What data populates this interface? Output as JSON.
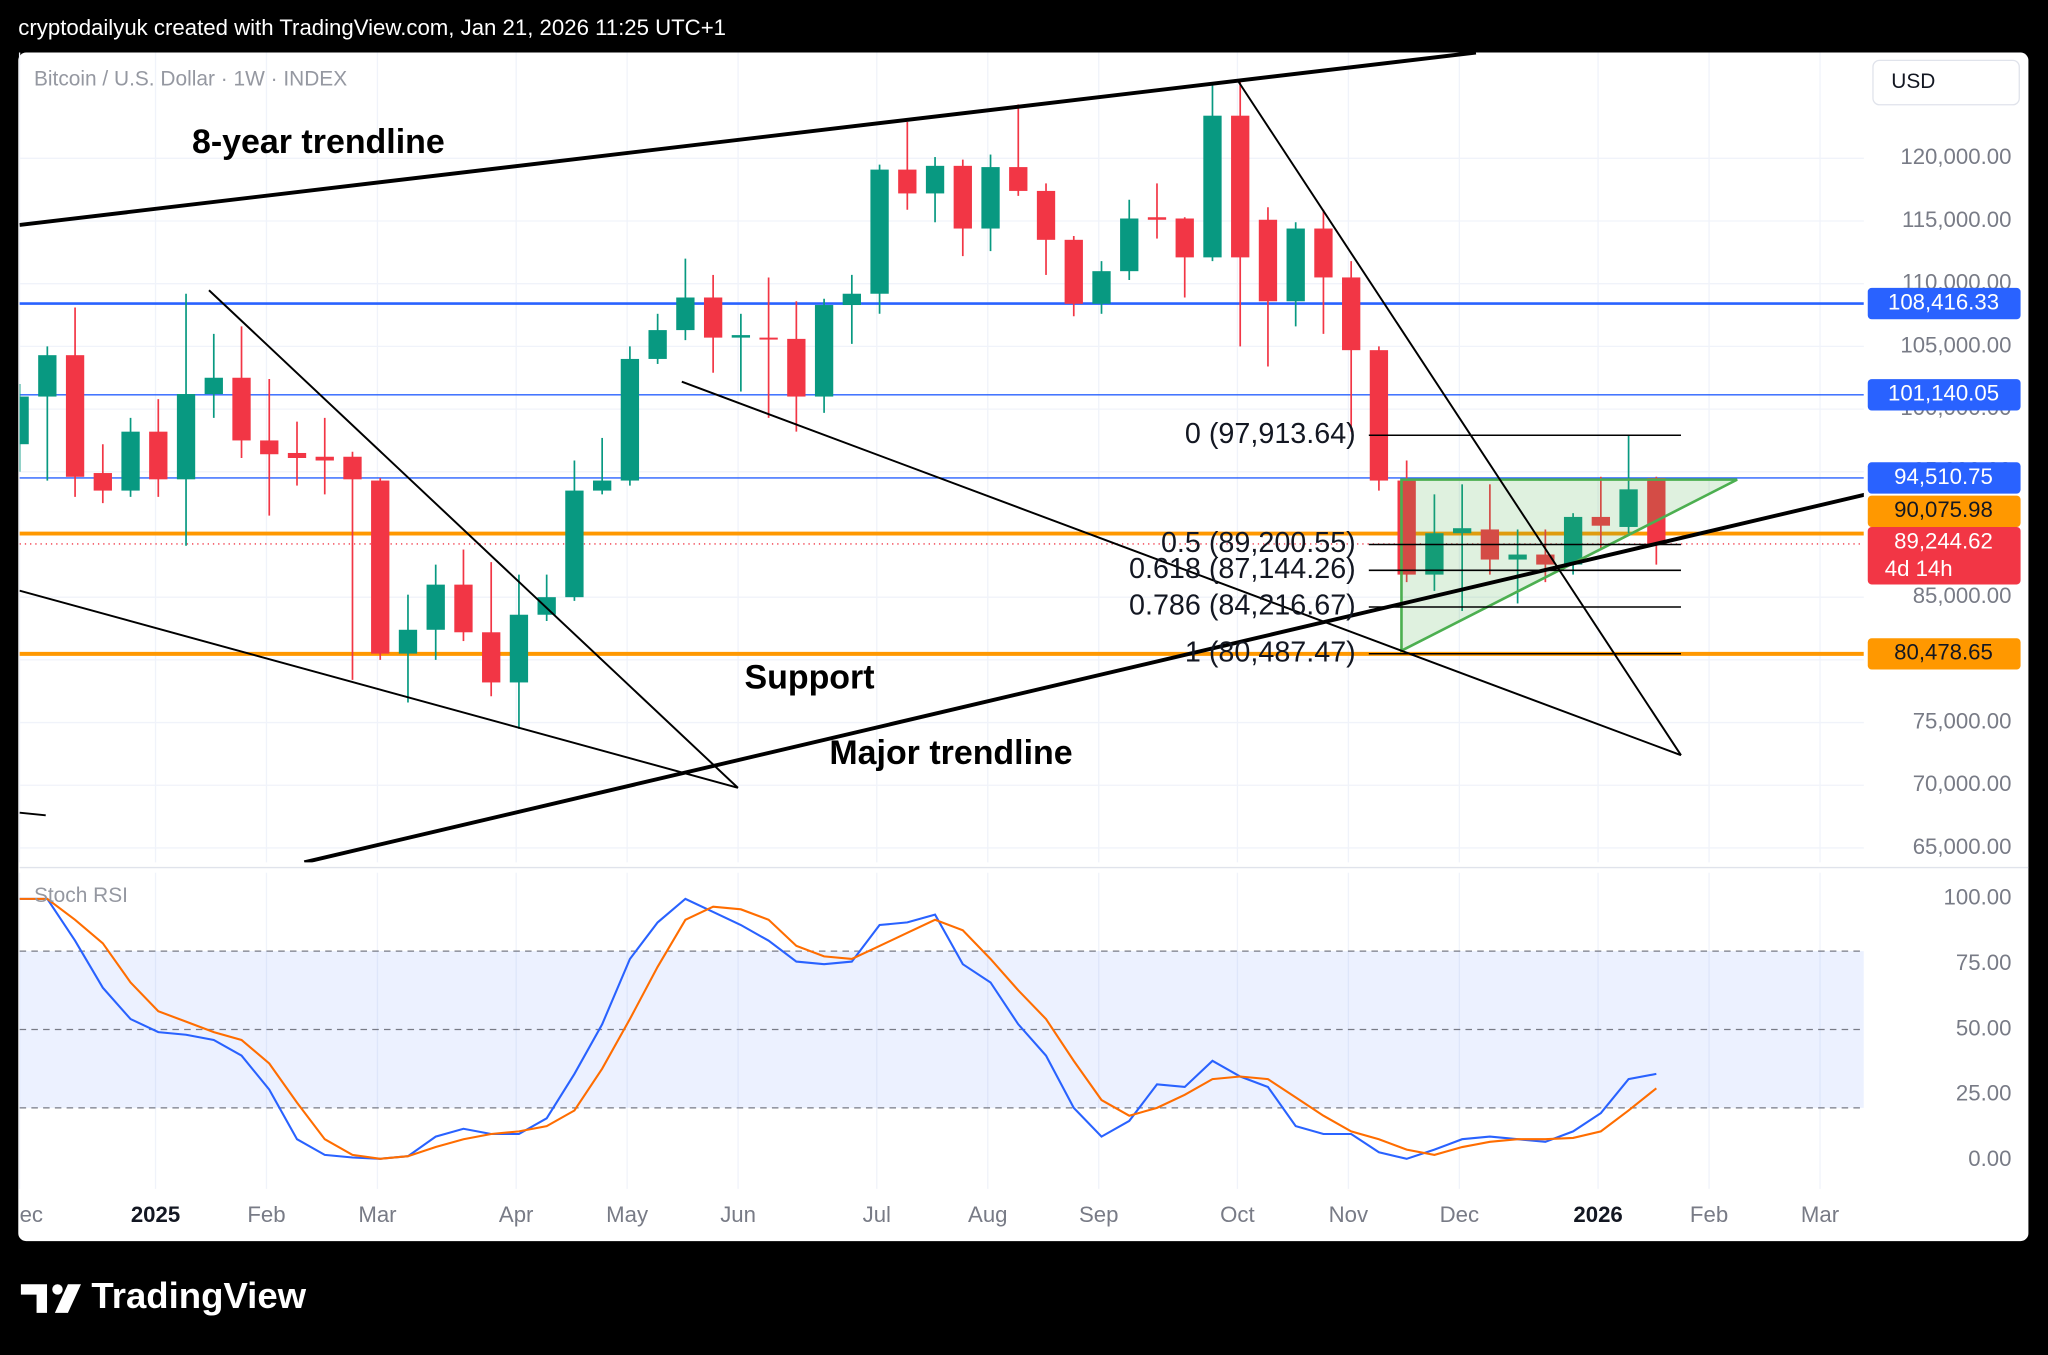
{
  "header": {
    "credit": "cryptodailyuk created with TradingView.com, Jan 21, 2026 11:25 UTC+1"
  },
  "footer": {
    "brand": "TradingView"
  },
  "chart_data": [
    {
      "type": "candlestick",
      "title": "Bitcoin / U.S. Dollar · 1W · INDEX",
      "currency": "USD",
      "up_color": "#089981",
      "down_color": "#f23645",
      "grid": true,
      "x": [
        0,
        1,
        2,
        3,
        4,
        5,
        6,
        7,
        8,
        9,
        10,
        11,
        12,
        13,
        14,
        15,
        16,
        17,
        18,
        19,
        20,
        21,
        22,
        23,
        24,
        25,
        26,
        27,
        28,
        29,
        30,
        31,
        32,
        33,
        34,
        35,
        36,
        37,
        38,
        39,
        40,
        41,
        42,
        43,
        44,
        45,
        46,
        47,
        48,
        49,
        50,
        51,
        52,
        53,
        54,
        55,
        56,
        57,
        58,
        59
      ],
      "open": [
        97200,
        101000,
        104300,
        94900,
        93500,
        98200,
        94400,
        101200,
        102500,
        97500,
        96500,
        96200,
        96200,
        94300,
        80500,
        82400,
        86000,
        82200,
        78200,
        83600,
        85000,
        93500,
        94300,
        104000,
        106300,
        108900,
        105700,
        105700,
        105600,
        101000,
        108300,
        109200,
        119100,
        117200,
        119400,
        114400,
        119300,
        117400,
        113500,
        108400,
        111000,
        115300,
        115200,
        112100,
        123400,
        115100,
        108600,
        114400,
        110500,
        104700,
        94300,
        86800,
        90100,
        90400,
        88000,
        88400,
        87600,
        91400,
        90600,
        94500
      ],
      "high": [
        102000,
        105000,
        108100,
        97200,
        99300,
        100800,
        109200,
        106000,
        106600,
        102400,
        99000,
        99300,
        96600,
        94500,
        85200,
        87600,
        88800,
        87800,
        86800,
        86800,
        95900,
        97700,
        105000,
        107600,
        112000,
        110700,
        107600,
        110500,
        108600,
        108800,
        110700,
        119500,
        122900,
        120100,
        119900,
        120300,
        124300,
        118000,
        113800,
        111800,
        116700,
        118000,
        115300,
        125900,
        126100,
        116100,
        114900,
        115900,
        111800,
        105000,
        95900,
        93200,
        94000,
        94000,
        90400,
        90400,
        91700,
        94600,
        97900,
        94600
      ],
      "low": [
        95000,
        94300,
        93000,
        92500,
        93000,
        93000,
        89100,
        99300,
        96100,
        91500,
        93900,
        93200,
        78400,
        80000,
        76600,
        80000,
        81500,
        77100,
        74500,
        83100,
        84700,
        93200,
        93900,
        103600,
        105500,
        102900,
        101400,
        99300,
        98200,
        99700,
        105200,
        107600,
        115900,
        114900,
        112200,
        112600,
        117000,
        110700,
        107400,
        107600,
        110300,
        113600,
        108900,
        111800,
        105000,
        103400,
        106600,
        106000,
        98200,
        93500,
        86200,
        85500,
        83900,
        86800,
        84500,
        86200,
        86800,
        88800,
        90100,
        87600
      ],
      "close": [
        101000,
        104300,
        94600,
        93500,
        98200,
        94400,
        101200,
        102500,
        97500,
        96400,
        96100,
        95900,
        94400,
        80500,
        82400,
        86000,
        82200,
        78200,
        83600,
        85000,
        93500,
        94300,
        104000,
        106300,
        108900,
        105700,
        105900,
        105600,
        101000,
        108300,
        109200,
        119100,
        117200,
        119400,
        114400,
        119300,
        117400,
        113500,
        108400,
        111000,
        115200,
        115100,
        112100,
        123400,
        112100,
        108600,
        114400,
        110500,
        104700,
        94300,
        86800,
        90100,
        90500,
        88000,
        88400,
        87600,
        91400,
        90700,
        93600,
        89244.62
      ],
      "xlim": [
        0,
        66.48
      ],
      "ylim": [
        63854,
        128438
      ],
      "yticks": [
        {
          "value": 65000,
          "label": "65,000.00"
        },
        {
          "value": 70000,
          "label": "70,000.00"
        },
        {
          "value": 75000,
          "label": "75,000.00"
        },
        {
          "value": 80000,
          "label": "80,000.00"
        },
        {
          "value": 85000,
          "label": "85,000.00"
        },
        {
          "value": 90000,
          "label": "90,000.00"
        },
        {
          "value": 95000,
          "label": "95,000.00"
        },
        {
          "value": 100000,
          "label": "100,000.00"
        },
        {
          "value": 105000,
          "label": "105,000.00"
        },
        {
          "value": 110000,
          "label": "110,000.00"
        },
        {
          "value": 115000,
          "label": "115,000.00"
        },
        {
          "value": 120000,
          "label": "120,000.00"
        }
      ],
      "levels": [
        {
          "value": 108416.33,
          "label": "108,416.33",
          "color": "#2962ff",
          "width": 2
        },
        {
          "value": 101140.05,
          "label": "101,140.05",
          "color": "#2962ff",
          "width": 1
        },
        {
          "value": 94510.75,
          "label": "94,510.75",
          "color": "#2962ff",
          "width": 1
        },
        {
          "value": 90075.98,
          "label": "90,075.98",
          "color": "#ff9800",
          "width": 3
        },
        {
          "value": 80478.65,
          "label": "80,478.65",
          "color": "#ff9800",
          "width": 3
        }
      ],
      "last_price": {
        "value": 89244.62,
        "label": "89,244.62",
        "countdown": "4d 14h",
        "color": "#f23645"
      },
      "fib": [
        {
          "value": 97913.64,
          "label": "0 (97,913.64)"
        },
        {
          "value": 89200.55,
          "label": "0.5 (89,200.55)"
        },
        {
          "value": 87144.26,
          "label": "0.618 (87,144.26)"
        },
        {
          "value": 84216.67,
          "label": "0.786 (84,216.67)"
        },
        {
          "value": 80487.47,
          "label": "1 (80,487.47)"
        }
      ],
      "annotations": [
        "8-year trendline",
        "Support",
        "Major trendline"
      ]
    },
    {
      "type": "line",
      "title": "Stoch RSI",
      "x": [
        0,
        1,
        2,
        3,
        4,
        5,
        6,
        7,
        8,
        9,
        10,
        11,
        12,
        13,
        14,
        15,
        16,
        17,
        18,
        19,
        20,
        21,
        22,
        23,
        24,
        25,
        26,
        27,
        28,
        29,
        30,
        31,
        32,
        33,
        34,
        35,
        36,
        37,
        38,
        39,
        40,
        41,
        42,
        43,
        44,
        45,
        46,
        47,
        48,
        49,
        50,
        51,
        52,
        53,
        54,
        55,
        56,
        57,
        58,
        59
      ],
      "series": [
        {
          "color": "#2962ff",
          "values": [
            100,
            100,
            84,
            66,
            54,
            49,
            48,
            46,
            40,
            27,
            8,
            2,
            1,
            0.5,
            1.5,
            9,
            12,
            10,
            10,
            16,
            33,
            52,
            77,
            91,
            100,
            95,
            90,
            84,
            76,
            75,
            76,
            90,
            91,
            94,
            75,
            68,
            52,
            40,
            20,
            9,
            15,
            29,
            28,
            38,
            32,
            28,
            13,
            10,
            10,
            3,
            0.5,
            4,
            8,
            9,
            8,
            7,
            11,
            18,
            31,
            33
          ]
        },
        {
          "color": "#ff6d00",
          "values": [
            100,
            100,
            92,
            83,
            68,
            57,
            53,
            49,
            46,
            37,
            22,
            8,
            2,
            0.5,
            1.5,
            5,
            8,
            10,
            11,
            13,
            19,
            35,
            54,
            74,
            92,
            97,
            96,
            92,
            82,
            78,
            77,
            82,
            87,
            92,
            88,
            77,
            65,
            54,
            38,
            23,
            17,
            20,
            25,
            31,
            32,
            31,
            24,
            17,
            11,
            8,
            4,
            2,
            5,
            7,
            8,
            8,
            8.5,
            11,
            19,
            27.5
          ]
        }
      ],
      "band": {
        "upper": 80,
        "middle": 50,
        "lower": 20,
        "color": "#2962ff"
      },
      "xlim": [
        0,
        66.48
      ],
      "ylim": [
        -11,
        110
      ],
      "yticks": [
        {
          "value": 0,
          "label": "0.00"
        },
        {
          "value": 25,
          "label": "25.00"
        },
        {
          "value": 50,
          "label": "50.00"
        },
        {
          "value": 75,
          "label": "75.00"
        },
        {
          "value": 100,
          "label": "100.00"
        }
      ],
      "xticks": [
        {
          "value": 0,
          "label": "ec"
        },
        {
          "value": 4.9,
          "label": "2025"
        },
        {
          "value": 8.9,
          "label": "Feb"
        },
        {
          "value": 12.9,
          "label": "Mar"
        },
        {
          "value": 17.9,
          "label": "Apr"
        },
        {
          "value": 21.9,
          "label": "May"
        },
        {
          "value": 25.9,
          "label": "Jun"
        },
        {
          "value": 30.9,
          "label": "Jul"
        },
        {
          "value": 34.9,
          "label": "Aug"
        },
        {
          "value": 38.9,
          "label": "Sep"
        },
        {
          "value": 43.9,
          "label": "Oct"
        },
        {
          "value": 47.9,
          "label": "Nov"
        },
        {
          "value": 51.9,
          "label": "Dec"
        },
        {
          "value": 56.9,
          "label": "2026"
        },
        {
          "value": 60.9,
          "label": "Feb"
        },
        {
          "value": 64.9,
          "label": "Mar"
        }
      ],
      "grid": true
    }
  ]
}
